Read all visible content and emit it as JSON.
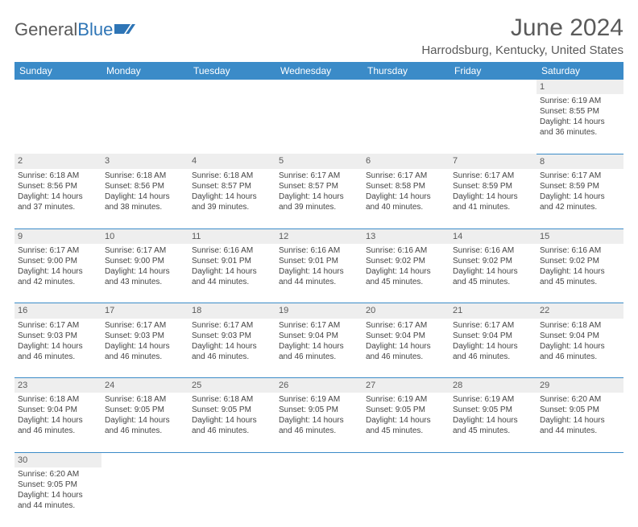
{
  "logo": {
    "text_a": "General",
    "text_b": "Blue",
    "icon_color": "#2e75b6"
  },
  "title": "June 2024",
  "location": "Harrodsburg, Kentucky, United States",
  "colors": {
    "header_bg": "#3b8bc8",
    "daynum_bg": "#eeeeee",
    "rule": "#3b8bc8"
  },
  "weekdays": [
    "Sunday",
    "Monday",
    "Tuesday",
    "Wednesday",
    "Thursday",
    "Friday",
    "Saturday"
  ],
  "weeks": [
    [
      null,
      null,
      null,
      null,
      null,
      null,
      {
        "d": "1",
        "sr": "Sunrise: 6:19 AM",
        "ss": "Sunset: 8:55 PM",
        "dl1": "Daylight: 14 hours",
        "dl2": "and 36 minutes."
      }
    ],
    [
      {
        "d": "2",
        "sr": "Sunrise: 6:18 AM",
        "ss": "Sunset: 8:56 PM",
        "dl1": "Daylight: 14 hours",
        "dl2": "and 37 minutes."
      },
      {
        "d": "3",
        "sr": "Sunrise: 6:18 AM",
        "ss": "Sunset: 8:56 PM",
        "dl1": "Daylight: 14 hours",
        "dl2": "and 38 minutes."
      },
      {
        "d": "4",
        "sr": "Sunrise: 6:18 AM",
        "ss": "Sunset: 8:57 PM",
        "dl1": "Daylight: 14 hours",
        "dl2": "and 39 minutes."
      },
      {
        "d": "5",
        "sr": "Sunrise: 6:17 AM",
        "ss": "Sunset: 8:57 PM",
        "dl1": "Daylight: 14 hours",
        "dl2": "and 39 minutes."
      },
      {
        "d": "6",
        "sr": "Sunrise: 6:17 AM",
        "ss": "Sunset: 8:58 PM",
        "dl1": "Daylight: 14 hours",
        "dl2": "and 40 minutes."
      },
      {
        "d": "7",
        "sr": "Sunrise: 6:17 AM",
        "ss": "Sunset: 8:59 PM",
        "dl1": "Daylight: 14 hours",
        "dl2": "and 41 minutes."
      },
      {
        "d": "8",
        "sr": "Sunrise: 6:17 AM",
        "ss": "Sunset: 8:59 PM",
        "dl1": "Daylight: 14 hours",
        "dl2": "and 42 minutes."
      }
    ],
    [
      {
        "d": "9",
        "sr": "Sunrise: 6:17 AM",
        "ss": "Sunset: 9:00 PM",
        "dl1": "Daylight: 14 hours",
        "dl2": "and 42 minutes."
      },
      {
        "d": "10",
        "sr": "Sunrise: 6:17 AM",
        "ss": "Sunset: 9:00 PM",
        "dl1": "Daylight: 14 hours",
        "dl2": "and 43 minutes."
      },
      {
        "d": "11",
        "sr": "Sunrise: 6:16 AM",
        "ss": "Sunset: 9:01 PM",
        "dl1": "Daylight: 14 hours",
        "dl2": "and 44 minutes."
      },
      {
        "d": "12",
        "sr": "Sunrise: 6:16 AM",
        "ss": "Sunset: 9:01 PM",
        "dl1": "Daylight: 14 hours",
        "dl2": "and 44 minutes."
      },
      {
        "d": "13",
        "sr": "Sunrise: 6:16 AM",
        "ss": "Sunset: 9:02 PM",
        "dl1": "Daylight: 14 hours",
        "dl2": "and 45 minutes."
      },
      {
        "d": "14",
        "sr": "Sunrise: 6:16 AM",
        "ss": "Sunset: 9:02 PM",
        "dl1": "Daylight: 14 hours",
        "dl2": "and 45 minutes."
      },
      {
        "d": "15",
        "sr": "Sunrise: 6:16 AM",
        "ss": "Sunset: 9:02 PM",
        "dl1": "Daylight: 14 hours",
        "dl2": "and 45 minutes."
      }
    ],
    [
      {
        "d": "16",
        "sr": "Sunrise: 6:17 AM",
        "ss": "Sunset: 9:03 PM",
        "dl1": "Daylight: 14 hours",
        "dl2": "and 46 minutes."
      },
      {
        "d": "17",
        "sr": "Sunrise: 6:17 AM",
        "ss": "Sunset: 9:03 PM",
        "dl1": "Daylight: 14 hours",
        "dl2": "and 46 minutes."
      },
      {
        "d": "18",
        "sr": "Sunrise: 6:17 AM",
        "ss": "Sunset: 9:03 PM",
        "dl1": "Daylight: 14 hours",
        "dl2": "and 46 minutes."
      },
      {
        "d": "19",
        "sr": "Sunrise: 6:17 AM",
        "ss": "Sunset: 9:04 PM",
        "dl1": "Daylight: 14 hours",
        "dl2": "and 46 minutes."
      },
      {
        "d": "20",
        "sr": "Sunrise: 6:17 AM",
        "ss": "Sunset: 9:04 PM",
        "dl1": "Daylight: 14 hours",
        "dl2": "and 46 minutes."
      },
      {
        "d": "21",
        "sr": "Sunrise: 6:17 AM",
        "ss": "Sunset: 9:04 PM",
        "dl1": "Daylight: 14 hours",
        "dl2": "and 46 minutes."
      },
      {
        "d": "22",
        "sr": "Sunrise: 6:18 AM",
        "ss": "Sunset: 9:04 PM",
        "dl1": "Daylight: 14 hours",
        "dl2": "and 46 minutes."
      }
    ],
    [
      {
        "d": "23",
        "sr": "Sunrise: 6:18 AM",
        "ss": "Sunset: 9:04 PM",
        "dl1": "Daylight: 14 hours",
        "dl2": "and 46 minutes."
      },
      {
        "d": "24",
        "sr": "Sunrise: 6:18 AM",
        "ss": "Sunset: 9:05 PM",
        "dl1": "Daylight: 14 hours",
        "dl2": "and 46 minutes."
      },
      {
        "d": "25",
        "sr": "Sunrise: 6:18 AM",
        "ss": "Sunset: 9:05 PM",
        "dl1": "Daylight: 14 hours",
        "dl2": "and 46 minutes."
      },
      {
        "d": "26",
        "sr": "Sunrise: 6:19 AM",
        "ss": "Sunset: 9:05 PM",
        "dl1": "Daylight: 14 hours",
        "dl2": "and 46 minutes."
      },
      {
        "d": "27",
        "sr": "Sunrise: 6:19 AM",
        "ss": "Sunset: 9:05 PM",
        "dl1": "Daylight: 14 hours",
        "dl2": "and 45 minutes."
      },
      {
        "d": "28",
        "sr": "Sunrise: 6:19 AM",
        "ss": "Sunset: 9:05 PM",
        "dl1": "Daylight: 14 hours",
        "dl2": "and 45 minutes."
      },
      {
        "d": "29",
        "sr": "Sunrise: 6:20 AM",
        "ss": "Sunset: 9:05 PM",
        "dl1": "Daylight: 14 hours",
        "dl2": "and 44 minutes."
      }
    ],
    [
      {
        "d": "30",
        "sr": "Sunrise: 6:20 AM",
        "ss": "Sunset: 9:05 PM",
        "dl1": "Daylight: 14 hours",
        "dl2": "and 44 minutes."
      },
      null,
      null,
      null,
      null,
      null,
      null
    ]
  ]
}
